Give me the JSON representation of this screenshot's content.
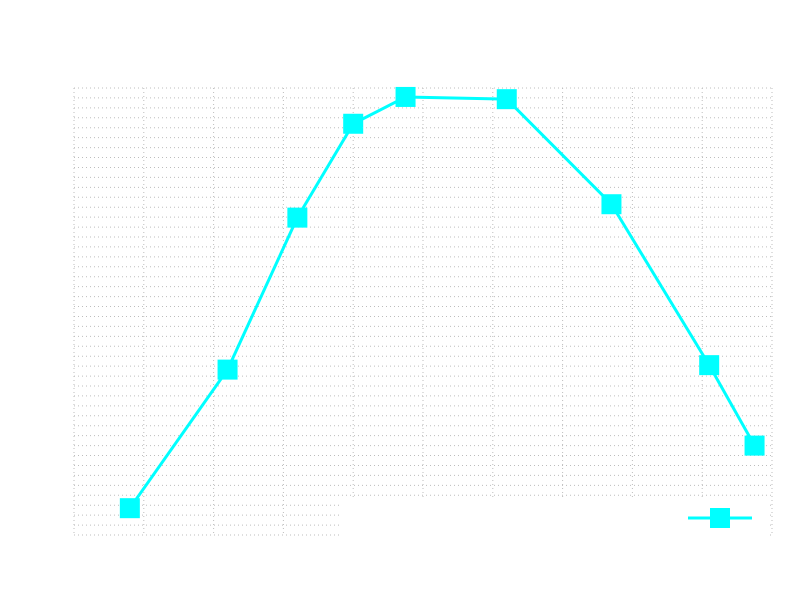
{
  "chart_data": {
    "type": "line",
    "title": "",
    "xlabel": "",
    "ylabel": "",
    "xlim": [
      0,
      10
    ],
    "ylim": [
      0,
      10
    ],
    "grid": true,
    "legend": "bottom-right",
    "series": [
      {
        "color": "#00ffff",
        "marker": "square",
        "x": [
          0.8,
          2.2,
          3.2,
          4.0,
          4.75,
          6.2,
          7.7,
          9.1,
          9.75
        ],
        "y": [
          0.6,
          3.7,
          7.1,
          9.2,
          9.8,
          9.75,
          7.4,
          3.8,
          2.0
        ]
      }
    ]
  }
}
